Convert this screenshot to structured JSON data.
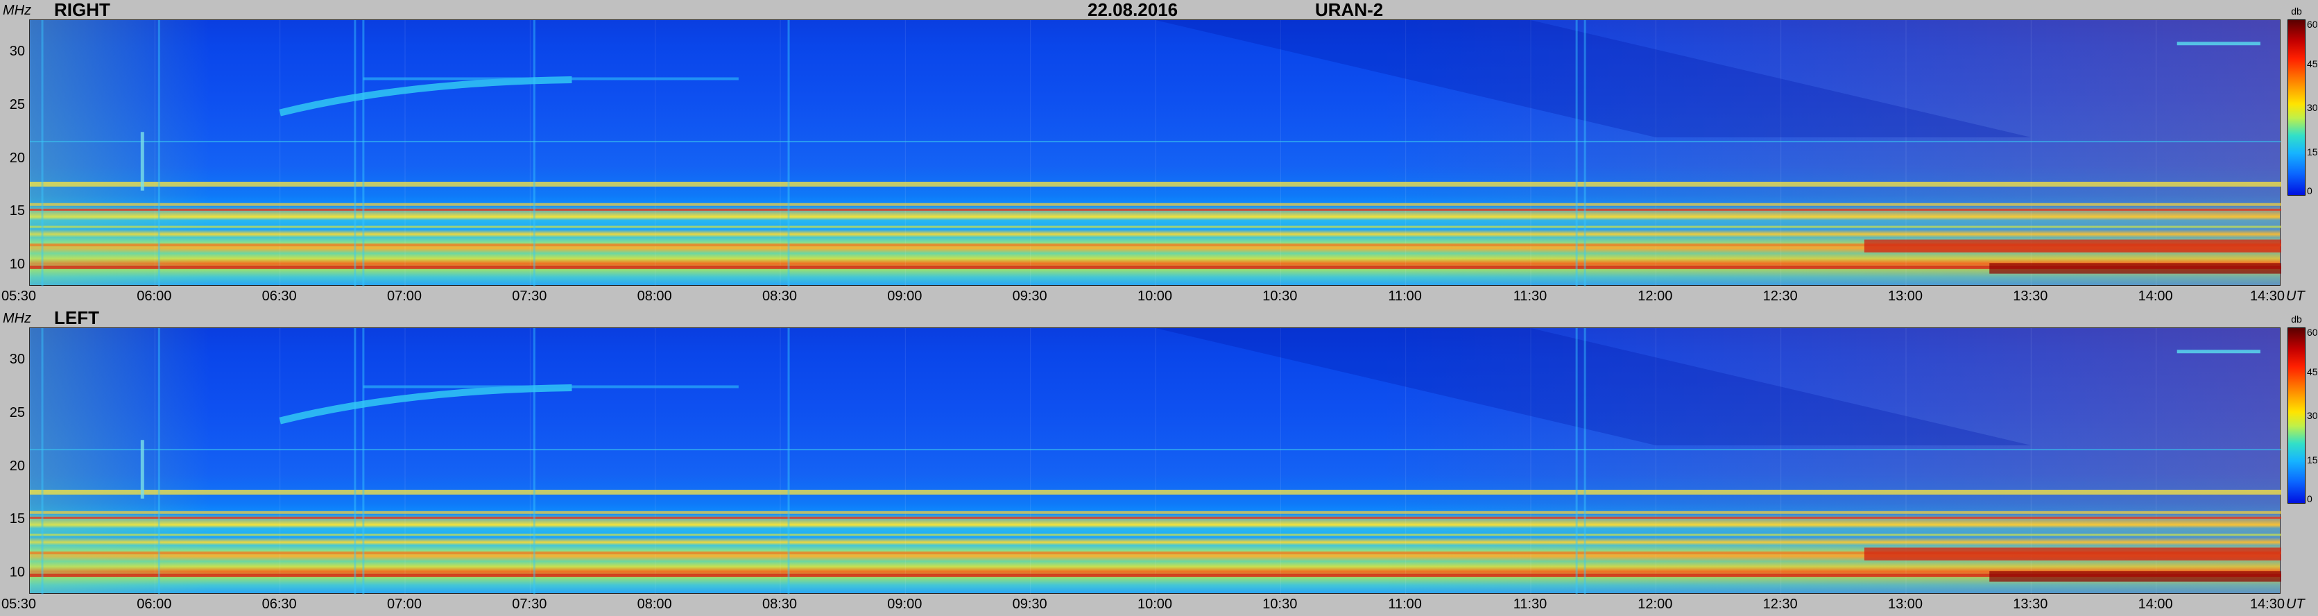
{
  "header": {
    "date": "22.08.2016",
    "instrument": "URAN-2"
  },
  "panels": [
    {
      "label": "RIGHT"
    },
    {
      "label": "LEFT"
    }
  ],
  "y_unit": "MHz",
  "x_unit": "UT",
  "colorbar": {
    "unit": "db",
    "ticks": [
      "60",
      "45",
      "30",
      "15",
      "0"
    ]
  },
  "chart_data": {
    "type": "heatmap",
    "title": "22.08.2016 URAN-2",
    "panels": [
      "RIGHT",
      "LEFT"
    ],
    "xlabel": "UT",
    "ylabel": "MHz",
    "x_ticks": [
      "05:30",
      "06:00",
      "06:30",
      "07:00",
      "07:30",
      "08:00",
      "08:30",
      "09:00",
      "09:30",
      "10:00",
      "10:30",
      "11:00",
      "11:30",
      "12:00",
      "12:30",
      "13:00",
      "13:30",
      "14:00",
      "14:30"
    ],
    "y_ticks": [
      30,
      25,
      20,
      15,
      10
    ],
    "ylim": [
      8,
      33
    ],
    "xlim": [
      "05:30",
      "14:30"
    ],
    "color_scale": {
      "unit": "db",
      "min": 0,
      "max": 60,
      "ticks": [
        0,
        15,
        30,
        45,
        60
      ],
      "colors": [
        "#0010e0",
        "#16b4ff",
        "#bff04a",
        "#ff9a00",
        "#c40000",
        "#5a0000"
      ]
    }
  }
}
